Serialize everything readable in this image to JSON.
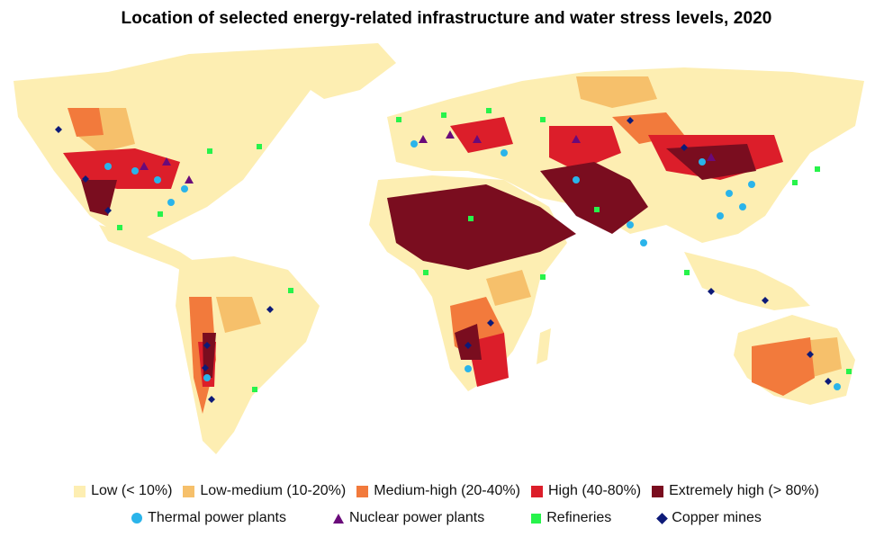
{
  "title": "Location of selected energy-related infrastructure and water stress levels, 2020",
  "legend": {
    "stress": [
      {
        "label": "Low (< 10%)",
        "color": "#fdeeb2"
      },
      {
        "label": "Low-medium (10-20%)",
        "color": "#f6c06b"
      },
      {
        "label": "Medium-high (20-40%)",
        "color": "#f27a3c"
      },
      {
        "label": "High (40-80%)",
        "color": "#dc1e2a"
      },
      {
        "label": "Extremely high (> 80%)",
        "color": "#7a0d1f"
      }
    ],
    "infrastructure": [
      {
        "label": "Thermal power plants",
        "color": "#2ab4ea",
        "marker": "circle"
      },
      {
        "label": "Nuclear power plants",
        "color": "#6a0a7a",
        "marker": "triangle"
      },
      {
        "label": "Refineries",
        "color": "#27f34b",
        "marker": "square"
      },
      {
        "label": "Copper mines",
        "color": "#0d1a78",
        "marker": "diamond"
      }
    ]
  }
}
